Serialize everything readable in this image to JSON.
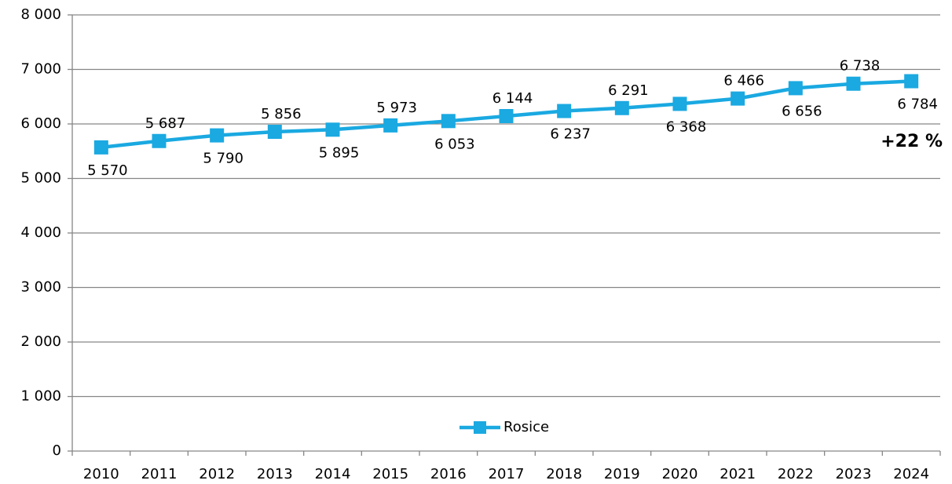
{
  "chart_data": {
    "type": "line",
    "categories": [
      "2010",
      "2011",
      "2012",
      "2013",
      "2014",
      "2015",
      "2016",
      "2017",
      "2018",
      "2019",
      "2020",
      "2021",
      "2022",
      "2023",
      "2024"
    ],
    "series": [
      {
        "name": "Rosice",
        "color": "#1aa9e1",
        "values": [
          5570,
          5687,
          5790,
          5856,
          5895,
          5973,
          6053,
          6144,
          6237,
          6291,
          6368,
          6466,
          6656,
          6738,
          6784
        ],
        "value_labels": [
          "5 570",
          "5 687",
          "5 790",
          "5 856",
          "5 895",
          "5 973",
          "6 053",
          "6 144",
          "6 237",
          "6 291",
          "6 368",
          "6 466",
          "6 656",
          "6 738",
          "6 784"
        ]
      }
    ],
    "ylim": [
      0,
      8000
    ],
    "yticks": [
      {
        "value": 0,
        "label": "0"
      },
      {
        "value": 1000,
        "label": "1 000"
      },
      {
        "value": 2000,
        "label": "2 000"
      },
      {
        "value": 3000,
        "label": "3 000"
      },
      {
        "value": 4000,
        "label": "4 000"
      },
      {
        "value": 5000,
        "label": "5 000"
      },
      {
        "value": 6000,
        "label": "6 000"
      },
      {
        "value": 7000,
        "label": "7 000"
      },
      {
        "value": 8000,
        "label": "8 000"
      }
    ],
    "grid": true,
    "legend": "bottom",
    "annotation": {
      "text": "+22 %",
      "color": "#1aa9e1"
    }
  }
}
